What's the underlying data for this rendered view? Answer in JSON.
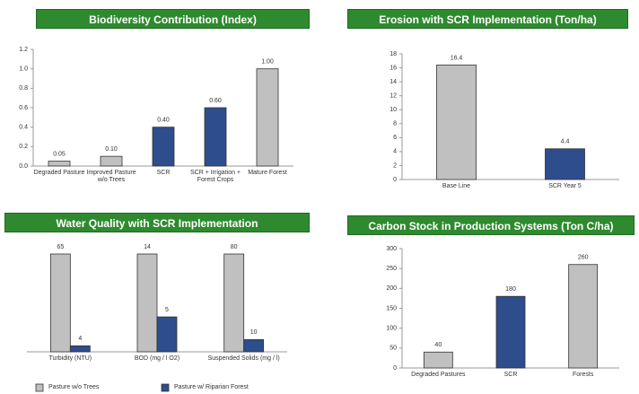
{
  "chart_data": [
    {
      "type": "bar",
      "title": "Biodiversity Contribution (Index)",
      "categories": [
        "Degraded Pasture",
        "Improved Pasture w/o Trees",
        "SCR",
        "SCR + Irrigation + Forest Crops",
        "Mature Forest"
      ],
      "values": [
        0.05,
        0.1,
        0.4,
        0.6,
        1.0
      ],
      "value_labels": [
        "0.05",
        "0.10",
        "0.40",
        "0.60",
        "1.00"
      ],
      "colors": [
        "#c0c0c0",
        "#c0c0c0",
        "#2e4d8c",
        "#2e4d8c",
        "#c0c0c0"
      ],
      "ylim": [
        0,
        1.2
      ],
      "yticks": [
        {
          "value": 0,
          "label": "0.0"
        },
        0.2,
        0.4,
        0.6,
        0.8,
        {
          "value": 1,
          "label": "1.0"
        },
        1.2
      ]
    },
    {
      "type": "bar",
      "title": "Erosion with SCR Implementation (Ton/ha)",
      "categories": [
        "Base Line",
        "SCR Year 5"
      ],
      "values": [
        16.4,
        4.4
      ],
      "colors": [
        "#c0c0c0",
        "#2e4d8c"
      ],
      "ylim": [
        0,
        18
      ],
      "yticks": [
        0,
        2,
        4,
        6,
        8,
        10,
        12,
        14,
        16,
        18
      ]
    },
    {
      "type": "grouped_bar",
      "title": "Water Quality with SCR Implementation",
      "categories": [
        "Turbidity (NTU)",
        "BOD (mg / l O2)",
        "Suspended Solids (mg / l)"
      ],
      "series": [
        {
          "name": "Pasture w/o Trees",
          "color": "#c0c0c0",
          "values": [
            65,
            14,
            80
          ]
        },
        {
          "name": "Pasture w/ Riparian Forest",
          "color": "#2e4d8c",
          "values": [
            4,
            5,
            10
          ]
        }
      ]
    },
    {
      "type": "bar",
      "title": "Carbon Stock in Production Systems (Ton C/ha)",
      "categories": [
        "Degraded Pastures",
        "SCR",
        "Forests"
      ],
      "values": [
        40,
        180,
        260
      ],
      "colors": [
        "#c0c0c0",
        "#2e4d8c",
        "#c0c0c0"
      ],
      "ylim": [
        0,
        300
      ],
      "yticks": [
        0,
        50,
        100,
        150,
        200,
        250,
        300
      ]
    }
  ]
}
